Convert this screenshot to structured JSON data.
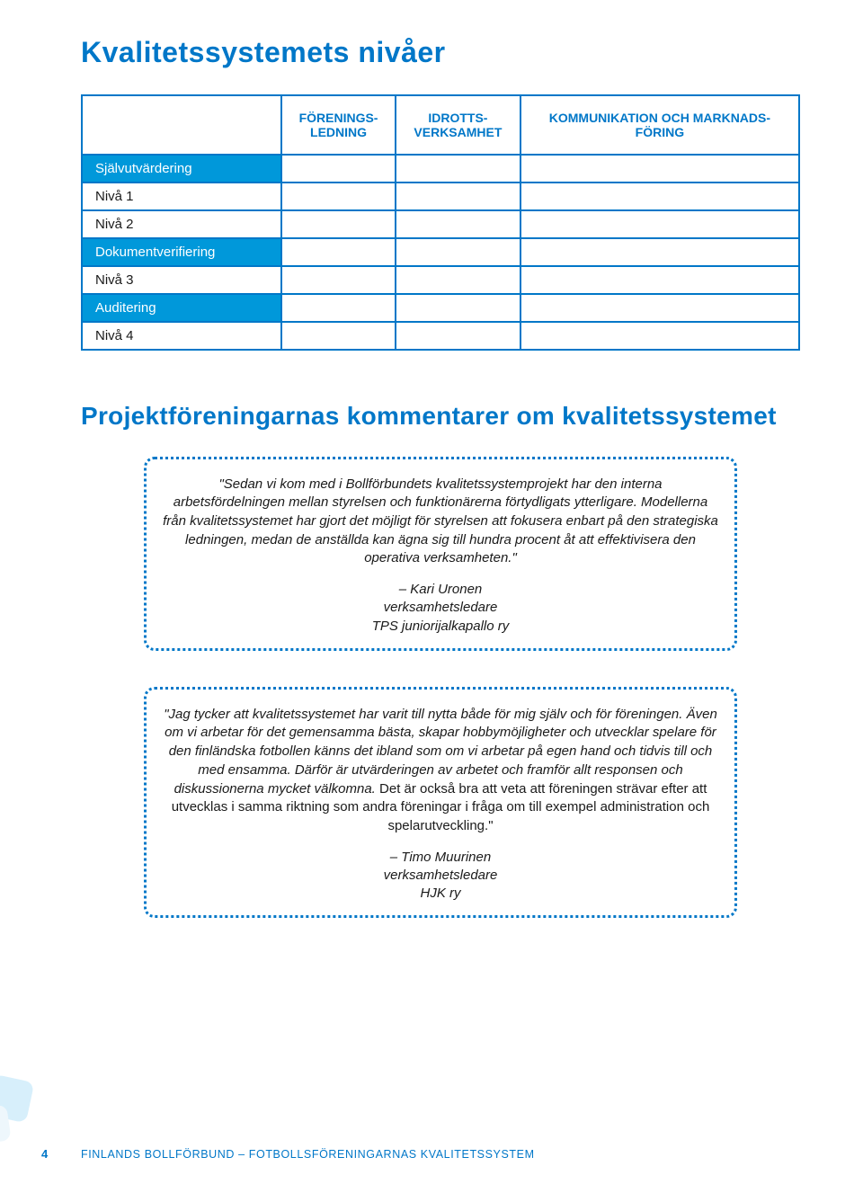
{
  "title": "Kvalitetssystemets nivåer",
  "table": {
    "columns": [
      "",
      "FÖRENINGS-\nLEDNING",
      "IDROTTS-\nVERKSAMHET",
      "KOMMUNIKATION OCH MARKNADS-\nFÖRING"
    ],
    "rows": [
      {
        "label": "Självutvärdering",
        "highlight": true
      },
      {
        "label": "Nivå 1",
        "highlight": false
      },
      {
        "label": "Nivå 2",
        "highlight": false
      },
      {
        "label": "Dokumentverifiering",
        "highlight": true
      },
      {
        "label": "Nivå 3",
        "highlight": false
      },
      {
        "label": "Auditering",
        "highlight": true
      },
      {
        "label": "Nivå 4",
        "highlight": false
      }
    ],
    "highlight_bg": "#0098da",
    "border_color": "#0077c8"
  },
  "section2_title": "Projektföreningarnas kommentarer om kvalitetssystemet",
  "quotes": [
    {
      "body_italic": "\"Sedan vi kom med i Bollförbundets kvalitetssystemprojekt har den interna arbetsfördelningen mellan styrelsen och funktionärerna förtydligats ytterligare. Modellerna från kvalitetssystemet har gjort det möjligt för styrelsen att fokusera enbart på den strategiska ledningen, medan de anställda kan ägna sig till hundra procent åt att effektivisera den operativa verksamheten.\"",
      "author": "– Kari Uronen",
      "role": "verksamhetsledare",
      "org": "TPS juniorijalkapallo ry"
    },
    {
      "body_italic": "\"Jag tycker att kvalitetssystemet har varit till nytta både för mig själv och för föreningen. Även om vi arbetar för det gemensamma bästa, skapar hobbymöjligheter och utvecklar spelare för den finländska fotbollen känns det ibland som om vi arbetar på egen hand och tidvis till och med ensamma. Därför är utvärderingen av arbetet och framför allt responsen och diskussionerna mycket välkomna.",
      "body_plain": " Det är också bra att veta att föreningen strävar efter att utvecklas i samma riktning som andra föreningar i fråga om till exempel administration och spelarutveckling.\"",
      "author": "– Timo Muurinen",
      "role": "verksamhetsledare",
      "org": "HJK ry"
    }
  ],
  "footer": {
    "page": "4",
    "line": "FINLANDS BOLLFÖRBUND – FOTBOLLSFÖRENINGARNAS KVALITETSSYSTEM"
  },
  "colors": {
    "brand_blue": "#0077c8",
    "light_blue": "#0098da",
    "text": "#1a1a1a"
  }
}
